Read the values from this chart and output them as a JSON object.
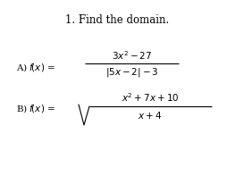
{
  "background_color": "#ffffff",
  "title": "1. Find the domain.",
  "fig_width": 2.63,
  "fig_height": 1.97,
  "dpi": 100,
  "title_fontsize": 8.5,
  "label_fontsize": 7.5,
  "math_fontsize": 7.5
}
